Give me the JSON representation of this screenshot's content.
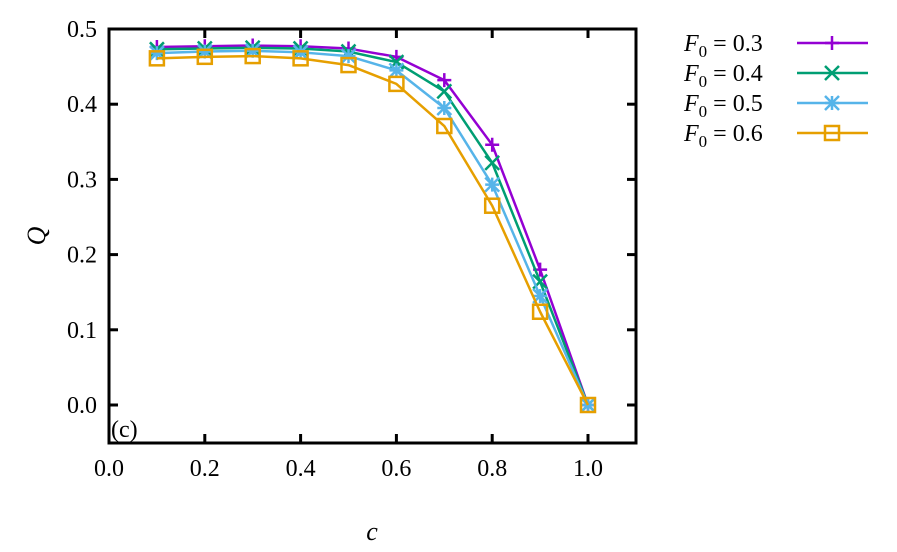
{
  "chart_data": {
    "type": "line",
    "title": "",
    "panel_label": "(c)",
    "xlabel": "c",
    "ylabel": "Q",
    "xlim": [
      0.0,
      1.1
    ],
    "ylim": [
      -0.05,
      0.5
    ],
    "xticks": [
      0.0,
      0.2,
      0.4,
      0.6,
      0.8,
      1.0
    ],
    "xtick_labels": [
      "0.0",
      "0.2",
      "0.4",
      "0.6",
      "0.8",
      "1.0"
    ],
    "yticks": [
      0.0,
      0.1,
      0.2,
      0.3,
      0.4,
      0.5
    ],
    "ytick_labels": [
      "0.0",
      "0.1",
      "0.2",
      "0.3",
      "0.4",
      "0.5"
    ],
    "grid": false,
    "legend_position": "outside-right-top",
    "x": [
      0.1,
      0.2,
      0.3,
      0.4,
      0.5,
      0.6,
      0.7,
      0.8,
      0.9,
      1.0
    ],
    "series": [
      {
        "name": "F0 = 0.3",
        "label_main": "F",
        "label_sub": "0",
        "label_rest": " = 0.3",
        "color": "#9400d3",
        "marker": "plus",
        "values": [
          0.476,
          0.477,
          0.478,
          0.477,
          0.474,
          0.463,
          0.432,
          0.346,
          0.18,
          0.0
        ]
      },
      {
        "name": "F0 = 0.4",
        "label_main": "F",
        "label_sub": "0",
        "label_rest": " = 0.4",
        "color": "#009e73",
        "marker": "cross",
        "values": [
          0.473,
          0.474,
          0.475,
          0.474,
          0.47,
          0.456,
          0.417,
          0.322,
          0.164,
          0.0
        ]
      },
      {
        "name": "F0 = 0.5",
        "label_main": "F",
        "label_sub": "0",
        "label_rest": " = 0.5",
        "color": "#56b4e9",
        "marker": "star",
        "values": [
          0.468,
          0.47,
          0.471,
          0.469,
          0.464,
          0.445,
          0.395,
          0.293,
          0.145,
          0.0
        ]
      },
      {
        "name": "F0 = 0.6",
        "label_main": "F",
        "label_sub": "0",
        "label_rest": " = 0.6",
        "color": "#e69f00",
        "marker": "square",
        "values": [
          0.461,
          0.463,
          0.464,
          0.461,
          0.452,
          0.427,
          0.371,
          0.265,
          0.124,
          0.0
        ]
      }
    ]
  }
}
